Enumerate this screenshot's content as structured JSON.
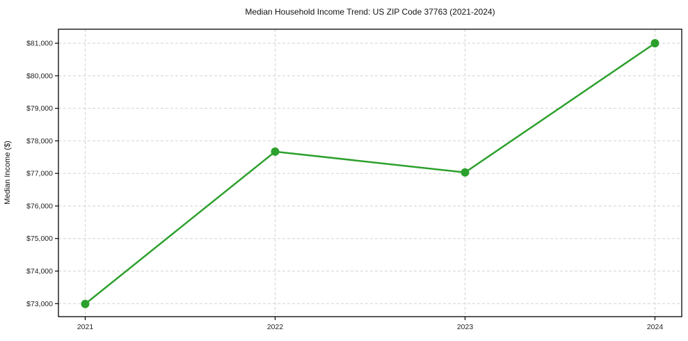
{
  "figure": {
    "background": "#ffffff"
  },
  "chart_data": {
    "type": "line",
    "title": "Median Household Income Trend: US ZIP Code 37763 (2021-2024)",
    "xlabel": "",
    "ylabel": "Median Income ($)",
    "categories": [
      "2021",
      "2022",
      "2023",
      "2024"
    ],
    "values": [
      72990,
      77670,
      77030,
      81000
    ],
    "y_ticks": [
      73000,
      74000,
      75000,
      76000,
      77000,
      78000,
      79000,
      80000,
      81000
    ],
    "y_tick_labels": [
      "$73,000",
      "$74,000",
      "$75,000",
      "$76,000",
      "$77,000",
      "$78,000",
      "$79,000",
      "$80,000",
      "$81,000"
    ],
    "ylim": [
      72600,
      81430
    ],
    "grid": true,
    "grid_style": "dashed",
    "legend_position": "none",
    "marker": "circle",
    "colors": {
      "line": "#2ca02c",
      "marker": "#2ca02c",
      "grid": "#d2d2d2",
      "spine": "#000000",
      "text": "#222222",
      "background": "#ffffff"
    }
  }
}
